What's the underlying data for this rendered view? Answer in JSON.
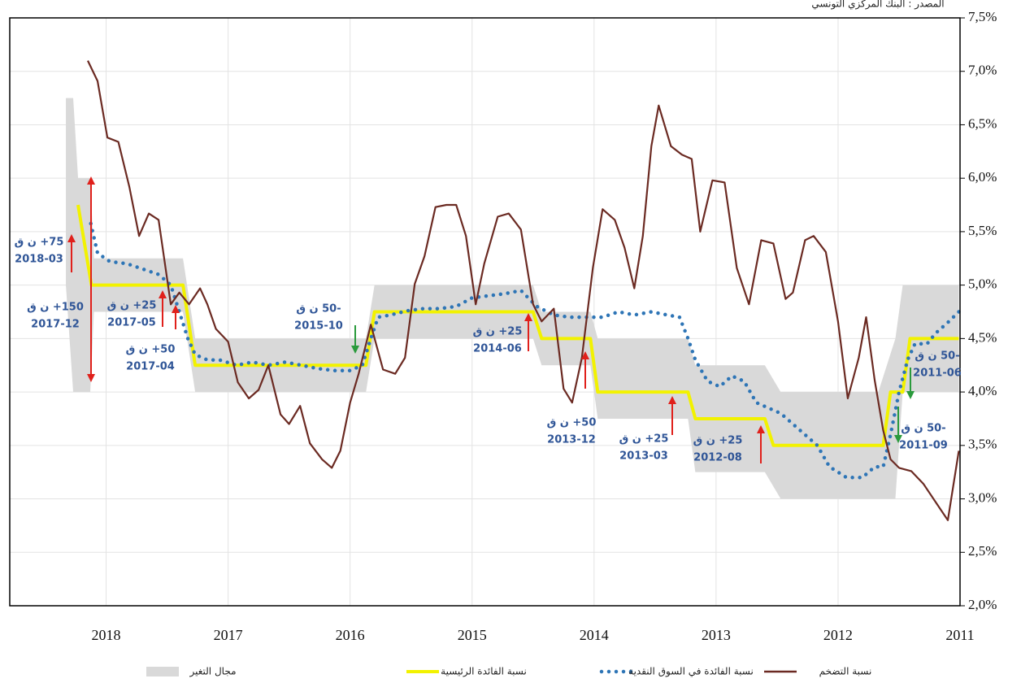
{
  "chart_data": {
    "type": "line",
    "source": "المصدر : البنك المركزي التونسي",
    "xlim": [
      2011,
      2018.79
    ],
    "x_reversed": true,
    "xticks": [
      2011,
      2012,
      2013,
      2014,
      2015,
      2016,
      2017,
      2018
    ],
    "ylim": [
      2.0,
      7.5
    ],
    "yticks": [
      {
        "value": 2.0,
        "label": "2,0%"
      },
      {
        "value": 2.5,
        "label": "2,5%"
      },
      {
        "value": 3.0,
        "label": "3,0%"
      },
      {
        "value": 3.5,
        "label": "3,5%"
      },
      {
        "value": 4.0,
        "label": "4,0%"
      },
      {
        "value": 4.5,
        "label": "4,5%"
      },
      {
        "value": 5.0,
        "label": "5,0%"
      },
      {
        "value": 5.5,
        "label": "5,5%"
      },
      {
        "value": 6.0,
        "label": "6,0%"
      },
      {
        "value": 6.5,
        "label": "6,5%"
      },
      {
        "value": 7.0,
        "label": "7,0%"
      },
      {
        "value": 7.5,
        "label": "7,5%"
      }
    ],
    "grid": true,
    "series": [
      {
        "name": "نسبة التضخم",
        "style": "line",
        "color": "#6b2a22",
        "x": [
          2011.01,
          2011.1,
          2011.2,
          2011.3,
          2011.4,
          2011.5,
          2011.57,
          2011.63,
          2011.7,
          2011.77,
          2011.83,
          2011.92,
          2012.0,
          2012.1,
          2012.2,
          2012.27,
          2012.37,
          2012.43,
          2012.53,
          2012.63,
          2012.73,
          2012.83,
          2012.93,
          2013.03,
          2013.13,
          2013.2,
          2013.28,
          2013.37,
          2013.47,
          2013.53,
          2013.6,
          2013.67,
          2013.75,
          2013.83,
          2013.93,
          2014.01,
          2014.1,
          2014.18,
          2014.25,
          2014.33,
          2014.43,
          2014.5,
          2014.6,
          2014.7,
          2014.79,
          2014.9,
          2014.97,
          2015.05,
          2015.13,
          2015.21,
          2015.3,
          2015.39,
          2015.47,
          2015.55,
          2015.63,
          2015.73,
          2015.83,
          2015.93,
          2016.0,
          2016.08,
          2016.15,
          2016.23,
          2016.33,
          2016.41,
          2016.5,
          2016.57,
          2016.67,
          2016.75,
          2016.83,
          2016.92,
          2017.0,
          2017.1,
          2017.17,
          2017.23,
          2017.32,
          2017.4,
          2017.47,
          2017.57,
          2017.65,
          2017.73,
          2017.81,
          2017.9,
          2017.99,
          2018.07,
          2018.15
        ],
        "values": [
          3.45,
          2.8,
          2.97,
          3.14,
          3.26,
          3.29,
          3.37,
          3.64,
          4.11,
          4.7,
          4.32,
          3.94,
          4.66,
          5.31,
          5.46,
          5.42,
          4.93,
          4.87,
          5.39,
          5.42,
          4.82,
          5.16,
          5.96,
          5.98,
          5.5,
          6.18,
          6.22,
          6.3,
          6.68,
          6.3,
          5.46,
          4.97,
          5.35,
          5.61,
          5.71,
          5.16,
          4.32,
          3.9,
          4.03,
          4.78,
          4.66,
          4.82,
          5.52,
          5.67,
          5.64,
          5.2,
          4.82,
          5.46,
          5.75,
          5.75,
          5.73,
          5.27,
          5.01,
          4.32,
          4.17,
          4.21,
          4.63,
          4.17,
          3.9,
          3.45,
          3.29,
          3.37,
          3.52,
          3.87,
          3.7,
          3.79,
          4.25,
          4.02,
          3.94,
          4.09,
          4.47,
          4.59,
          4.82,
          4.97,
          4.82,
          4.93,
          4.82,
          5.61,
          5.67,
          5.46,
          5.92,
          6.34,
          6.38,
          6.91,
          7.1
        ]
      },
      {
        "name": "نسبة الفائدة في السوق النقدية",
        "style": "dots",
        "color": "#2e75b6",
        "x": [
          2011.01,
          2011.1,
          2011.2,
          2011.27,
          2011.37,
          2011.43,
          2011.5,
          2011.57,
          2011.63,
          2011.7,
          2011.8,
          2011.93,
          2012.0,
          2012.07,
          2012.17,
          2012.27,
          2012.37,
          2012.47,
          2012.57,
          2012.67,
          2012.77,
          2012.87,
          2012.97,
          2013.07,
          2013.17,
          2013.23,
          2013.3,
          2013.4,
          2013.53,
          2013.67,
          2013.8,
          2013.93,
          2014.07,
          2014.2,
          2014.33,
          2014.47,
          2014.6,
          2014.73,
          2014.87,
          2015.0,
          2015.13,
          2015.27,
          2015.4,
          2015.53,
          2015.67,
          2015.77,
          2015.83,
          2015.9,
          2016.0,
          2016.13,
          2016.27,
          2016.4,
          2016.53,
          2016.67,
          2016.8,
          2016.93,
          2017.07,
          2017.17,
          2017.27,
          2017.33,
          2017.4,
          2017.47,
          2017.57,
          2017.7,
          2017.83,
          2017.97,
          2018.07,
          2018.13
        ],
        "values": [
          4.75,
          4.65,
          4.55,
          4.45,
          4.45,
          4.3,
          4.0,
          3.6,
          3.3,
          3.3,
          3.2,
          3.2,
          3.25,
          3.3,
          3.5,
          3.6,
          3.7,
          3.8,
          3.85,
          3.9,
          4.1,
          4.15,
          4.05,
          4.1,
          4.3,
          4.5,
          4.7,
          4.72,
          4.75,
          4.72,
          4.75,
          4.7,
          4.7,
          4.7,
          4.72,
          4.8,
          4.95,
          4.92,
          4.9,
          4.88,
          4.8,
          4.78,
          4.78,
          4.76,
          4.72,
          4.7,
          4.5,
          4.25,
          4.2,
          4.2,
          4.22,
          4.25,
          4.28,
          4.25,
          4.28,
          4.25,
          4.3,
          4.3,
          4.35,
          4.5,
          4.75,
          5.0,
          5.1,
          5.15,
          5.2,
          5.22,
          5.3,
          5.6
        ]
      },
      {
        "name": "نسبة الفائدة الرئيسية",
        "style": "line",
        "color": "#f2f200",
        "x": [
          2011.01,
          2011.41,
          2011.47,
          2011.57,
          2011.63,
          2012.53,
          2012.6,
          2013.17,
          2013.23,
          2013.97,
          2014.03,
          2014.43,
          2014.5,
          2015.8,
          2015.87,
          2017.27,
          2017.37,
          2018.12,
          2018.23
        ],
        "values": [
          4.5,
          4.5,
          4.0,
          4.0,
          3.5,
          3.5,
          3.75,
          3.75,
          4.0,
          4.0,
          4.5,
          4.5,
          4.75,
          4.75,
          4.25,
          4.25,
          5.0,
          5.0,
          5.75
        ]
      },
      {
        "name": "مجال التغير",
        "style": "band",
        "color": "#d9d9d9",
        "x": [
          2011.01,
          2011.47,
          2011.53,
          2011.67,
          2012.47,
          2012.6,
          2013.17,
          2013.23,
          2013.97,
          2014.03,
          2014.43,
          2014.5,
          2015.8,
          2015.87,
          2017.27,
          2017.37,
          2018.1,
          2018.13,
          2018.23,
          2018.27,
          2018.33
        ],
        "values": [
          5.0,
          5.0,
          4.5,
          4.0,
          4.0,
          4.25,
          4.25,
          4.5,
          4.5,
          4.75,
          4.75,
          5.0,
          5.0,
          4.5,
          4.5,
          5.25,
          5.25,
          6.0,
          6.0,
          6.75,
          6.75
        ],
        "lower": [
          4.0,
          4.0,
          3.0,
          3.0,
          3.0,
          3.25,
          3.25,
          3.75,
          3.75,
          4.25,
          4.25,
          4.5,
          4.5,
          4.0,
          4.0,
          4.75,
          4.75,
          4.0,
          4.0,
          4.0,
          5.0
        ]
      }
    ],
    "annotations": [
      {
        "change": "75+ ن ق",
        "date": "2018-03"
      },
      {
        "change": "150+ ن ق",
        "date": "2017-12"
      },
      {
        "change": "25+ ن ق",
        "date": "2017-05"
      },
      {
        "change": "50+ ن ق",
        "date": "2017-04"
      },
      {
        "change": "-50 ن ق",
        "date": "2015-10"
      },
      {
        "change": "25+ ن ق",
        "date": "2014-06"
      },
      {
        "change": "50+ ن ق",
        "date": "2013-12"
      },
      {
        "change": "25+ ن ق",
        "date": "2013-03"
      },
      {
        "change": "25+ ن ق",
        "date": "2012-08"
      },
      {
        "change": "-50 ن ق",
        "date": "2011-06"
      },
      {
        "change": "-50 ن ق",
        "date": "2011-09"
      }
    ]
  }
}
